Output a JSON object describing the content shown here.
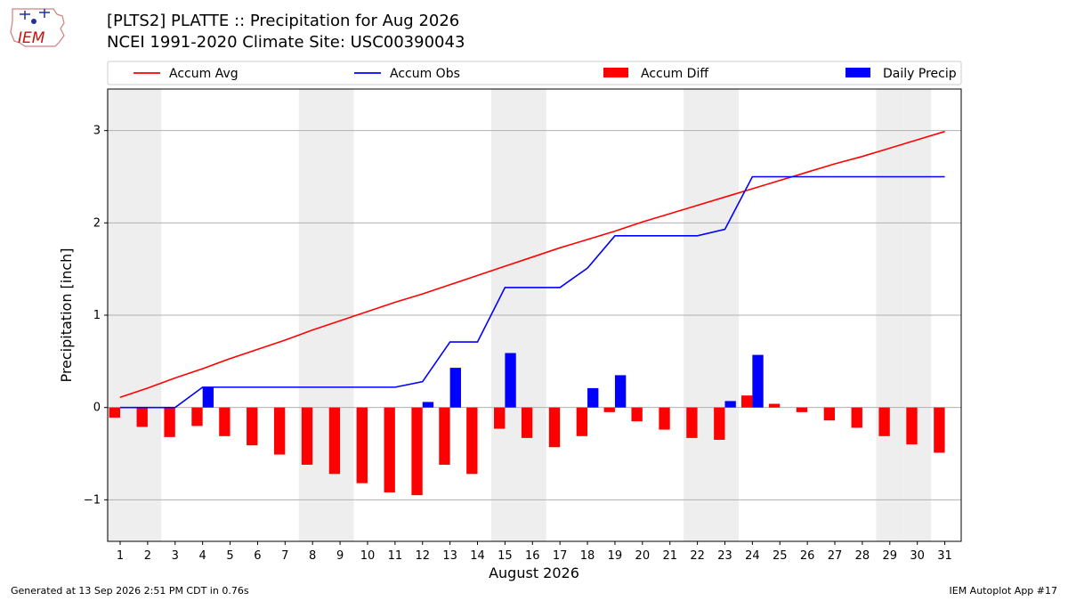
{
  "header": {
    "title_line1": "[PLTS2] PLATTE :: Precipitation for Aug 2026",
    "title_line2": "NCEI 1991-2020 Climate Site: USC00390043",
    "logo_text": "IEM"
  },
  "footer": {
    "left": "Generated at 13 Sep 2026 2:51 PM CDT in 0.76s",
    "right": "IEM Autoplot App #17"
  },
  "chart_data": {
    "type": "bar",
    "xlabel": "August 2026",
    "ylabel": "Precipitation [inch]",
    "ylim": [
      -1.45,
      3.45
    ],
    "yticks": [
      -1,
      0,
      1,
      2,
      3
    ],
    "ytick_labels": [
      "−1",
      "0",
      "1",
      "2",
      "3"
    ],
    "grid": true,
    "legend_placement": "top",
    "weekend_shading_days": [
      1,
      2,
      8,
      9,
      15,
      16,
      22,
      23,
      29,
      30
    ],
    "days": [
      1,
      2,
      3,
      4,
      5,
      6,
      7,
      8,
      9,
      10,
      11,
      12,
      13,
      14,
      15,
      16,
      17,
      18,
      19,
      20,
      21,
      22,
      23,
      24,
      25,
      26,
      27,
      28,
      29,
      30,
      31
    ],
    "series": [
      {
        "name": "Accum Avg",
        "kind": "line",
        "color": "#ff0000",
        "values": [
          0.11,
          0.21,
          0.32,
          0.42,
          0.53,
          0.63,
          0.73,
          0.84,
          0.94,
          1.04,
          1.14,
          1.23,
          1.33,
          1.43,
          1.53,
          1.63,
          1.73,
          1.82,
          1.91,
          2.01,
          2.1,
          2.19,
          2.28,
          2.37,
          2.46,
          2.55,
          2.64,
          2.72,
          2.81,
          2.9,
          2.99
        ]
      },
      {
        "name": "Accum Obs",
        "kind": "line",
        "color": "#0000ff",
        "values": [
          0.0,
          0.0,
          0.0,
          0.22,
          0.22,
          0.22,
          0.22,
          0.22,
          0.22,
          0.22,
          0.22,
          0.28,
          0.71,
          0.71,
          1.3,
          1.3,
          1.3,
          1.51,
          1.86,
          1.86,
          1.86,
          1.86,
          1.93,
          2.5,
          2.5,
          2.5,
          2.5,
          2.5,
          2.5,
          2.5,
          2.5
        ]
      },
      {
        "name": "Accum Diff",
        "kind": "bar",
        "color": "#ff0000",
        "values": [
          -0.11,
          -0.21,
          -0.32,
          -0.2,
          -0.31,
          -0.41,
          -0.51,
          -0.62,
          -0.72,
          -0.82,
          -0.92,
          -0.95,
          -0.62,
          -0.72,
          -0.23,
          -0.33,
          -0.43,
          -0.31,
          -0.05,
          -0.15,
          -0.24,
          -0.33,
          -0.35,
          0.13,
          0.04,
          -0.05,
          -0.14,
          -0.22,
          -0.31,
          -0.4,
          -0.49
        ]
      },
      {
        "name": "Daily Precip",
        "kind": "bar",
        "color": "#0000ff",
        "values": [
          0,
          0,
          0,
          0.22,
          0,
          0,
          0,
          0,
          0,
          0,
          0,
          0.06,
          0.43,
          0,
          0.59,
          0,
          0,
          0.21,
          0.35,
          0,
          0,
          0,
          0.07,
          0.57,
          0,
          0,
          0,
          0,
          0,
          0,
          0
        ]
      }
    ]
  }
}
